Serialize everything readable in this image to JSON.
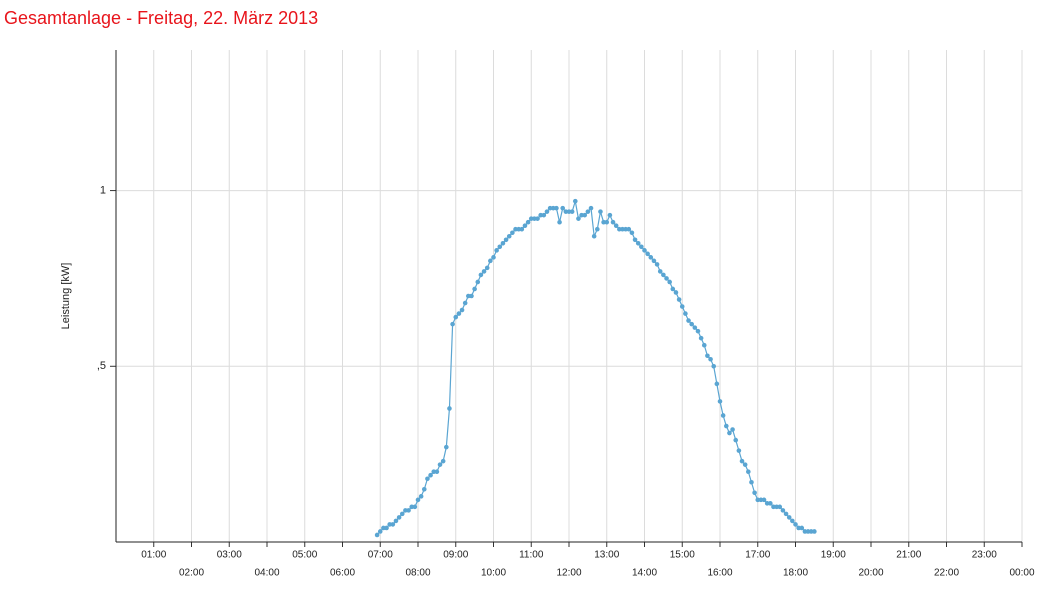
{
  "chart_data": {
    "type": "line",
    "title": "Gesamtanlage - Freitag, 22. März 2013",
    "y_label": "Leistung [kW]",
    "xlim": [
      0,
      1440
    ],
    "xticks": [
      {
        "value": 60,
        "label": "01:00"
      },
      {
        "value": 120,
        "label": "02:00"
      },
      {
        "value": 180,
        "label": "03:00"
      },
      {
        "value": 240,
        "label": "04:00"
      },
      {
        "value": 300,
        "label": "05:00"
      },
      {
        "value": 360,
        "label": "06:00"
      },
      {
        "value": 420,
        "label": "07:00"
      },
      {
        "value": 480,
        "label": "08:00"
      },
      {
        "value": 540,
        "label": "09:00"
      },
      {
        "value": 600,
        "label": "10:00"
      },
      {
        "value": 660,
        "label": "11:00"
      },
      {
        "value": 720,
        "label": "12:00"
      },
      {
        "value": 780,
        "label": "13:00"
      },
      {
        "value": 840,
        "label": "14:00"
      },
      {
        "value": 900,
        "label": "15:00"
      },
      {
        "value": 960,
        "label": "16:00"
      },
      {
        "value": 1020,
        "label": "17:00"
      },
      {
        "value": 1080,
        "label": "18:00"
      },
      {
        "value": 1140,
        "label": "19:00"
      },
      {
        "value": 1200,
        "label": "20:00"
      },
      {
        "value": 1260,
        "label": "21:00"
      },
      {
        "value": 1320,
        "label": "22:00"
      },
      {
        "value": 1380,
        "label": "23:00"
      },
      {
        "value": 1440,
        "label": "00:00"
      }
    ],
    "ylim": [
      0,
      1.4
    ],
    "yticks": [
      {
        "value": 0.5,
        "label": ",5"
      },
      1
    ],
    "grid": true,
    "x": [
      415,
      420,
      425,
      430,
      435,
      440,
      445,
      450,
      455,
      460,
      465,
      470,
      475,
      480,
      485,
      490,
      495,
      500,
      505,
      510,
      515,
      520,
      525,
      530,
      535,
      540,
      545,
      550,
      555,
      560,
      565,
      570,
      575,
      580,
      585,
      590,
      595,
      600,
      605,
      610,
      615,
      620,
      625,
      630,
      635,
      640,
      645,
      650,
      655,
      660,
      665,
      670,
      675,
      680,
      685,
      690,
      695,
      700,
      705,
      710,
      715,
      720,
      725,
      730,
      735,
      740,
      745,
      750,
      755,
      760,
      765,
      770,
      775,
      780,
      785,
      790,
      795,
      800,
      805,
      810,
      815,
      820,
      825,
      830,
      835,
      840,
      845,
      850,
      855,
      860,
      865,
      870,
      875,
      880,
      885,
      890,
      895,
      900,
      905,
      910,
      915,
      920,
      925,
      930,
      935,
      940,
      945,
      950,
      955,
      960,
      965,
      970,
      975,
      980,
      985,
      990,
      995,
      1000,
      1005,
      1010,
      1015,
      1020,
      1025,
      1030,
      1035,
      1040,
      1045,
      1050,
      1055,
      1060,
      1065,
      1070,
      1075,
      1080,
      1085,
      1090,
      1095,
      1100,
      1105,
      1110
    ],
    "series": [
      {
        "name": "Leistung",
        "color": "#5aa5d2",
        "values": [
          0.02,
          0.03,
          0.04,
          0.04,
          0.05,
          0.05,
          0.06,
          0.07,
          0.08,
          0.09,
          0.09,
          0.1,
          0.1,
          0.12,
          0.13,
          0.15,
          0.18,
          0.19,
          0.2,
          0.2,
          0.22,
          0.23,
          0.27,
          0.38,
          0.62,
          0.64,
          0.65,
          0.66,
          0.68,
          0.7,
          0.7,
          0.72,
          0.74,
          0.76,
          0.77,
          0.78,
          0.8,
          0.81,
          0.83,
          0.84,
          0.85,
          0.86,
          0.87,
          0.88,
          0.89,
          0.89,
          0.89,
          0.9,
          0.91,
          0.92,
          0.92,
          0.92,
          0.93,
          0.93,
          0.94,
          0.95,
          0.95,
          0.95,
          0.91,
          0.95,
          0.94,
          0.94,
          0.94,
          0.97,
          0.92,
          0.93,
          0.93,
          0.94,
          0.95,
          0.87,
          0.89,
          0.94,
          0.91,
          0.91,
          0.93,
          0.91,
          0.9,
          0.89,
          0.89,
          0.89,
          0.89,
          0.88,
          0.86,
          0.85,
          0.84,
          0.83,
          0.82,
          0.81,
          0.8,
          0.79,
          0.77,
          0.76,
          0.75,
          0.74,
          0.72,
          0.71,
          0.69,
          0.67,
          0.65,
          0.63,
          0.62,
          0.61,
          0.6,
          0.58,
          0.56,
          0.53,
          0.52,
          0.5,
          0.45,
          0.4,
          0.36,
          0.33,
          0.31,
          0.32,
          0.29,
          0.26,
          0.23,
          0.22,
          0.2,
          0.17,
          0.14,
          0.12,
          0.12,
          0.12,
          0.11,
          0.11,
          0.1,
          0.1,
          0.1,
          0.09,
          0.08,
          0.07,
          0.06,
          0.05,
          0.04,
          0.04,
          0.03,
          0.03,
          0.03,
          0.03
        ]
      }
    ]
  }
}
